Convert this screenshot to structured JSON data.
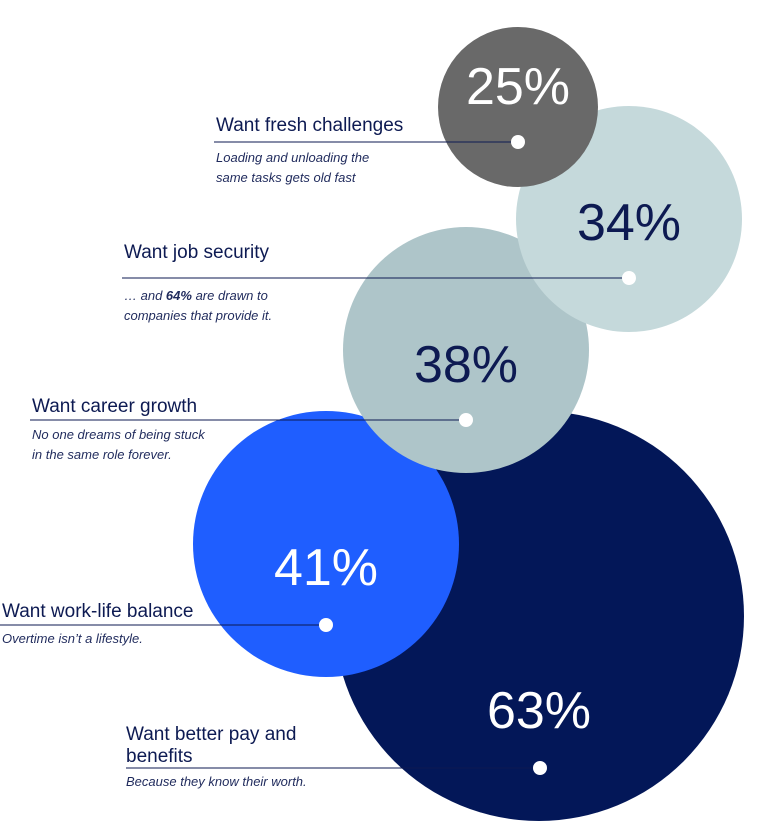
{
  "chart_data": {
    "type": "bubble",
    "unit": "%",
    "series": [
      {
        "value": 63,
        "label": "63%",
        "heading": [
          "Want better pay and",
          "benefits"
        ],
        "description": [
          "Because they know their worth."
        ],
        "color": "#031758",
        "text_color": "#ffffff"
      },
      {
        "value": 41,
        "label": "41%",
        "heading": [
          "Want work-life balance"
        ],
        "description": [
          "Overtime isn’t a lifestyle."
        ],
        "color": "#1f5eff",
        "text_color": "#ffffff"
      },
      {
        "value": 38,
        "label": "38%",
        "heading": [
          "Want career growth"
        ],
        "description": [
          "No one dreams of being stuck",
          "in the same role forever."
        ],
        "color": "#aec5c9",
        "text_color": "#0d1a52"
      },
      {
        "value": 34,
        "label": "34%",
        "heading": [
          "Want job security"
        ],
        "description": [
          "… and 64% are drawn to",
          "companies that provide it."
        ],
        "description_bold": "64%",
        "color": "#c5d9db",
        "text_color": "#0d1a52"
      },
      {
        "value": 25,
        "label": "25%",
        "heading": [
          "Want fresh challenges"
        ],
        "description": [
          "Loading and unloading the",
          "same tasks gets old fast"
        ],
        "color": "#696969",
        "text_color": "#ffffff"
      }
    ]
  }
}
